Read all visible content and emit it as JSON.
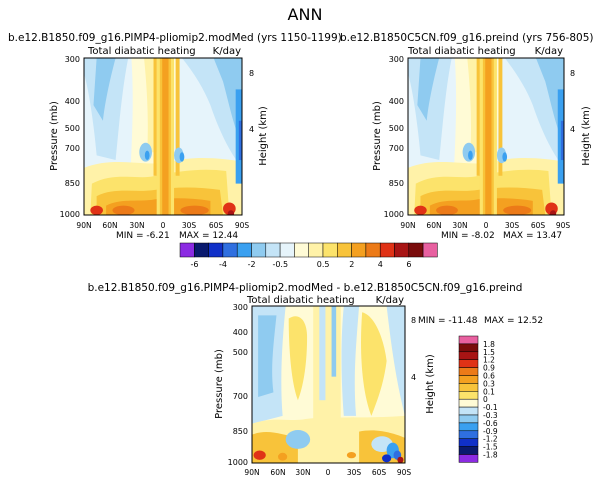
{
  "page_title": "ANN",
  "colors": {
    "purple": "#8b2be2",
    "navy": "#0a1a6e",
    "darkblue": "#1030c8",
    "blue": "#2f6fe0",
    "midblue": "#3aa0f0",
    "lightblue": "#8fcbf0",
    "paleblue": "#c4e4f7",
    "palest": "#e6f4fb",
    "cream": "#fffbd6",
    "paleyellow": "#fff2a8",
    "yellow": "#fce36b",
    "gold": "#f8c33a",
    "orange": "#f4a020",
    "darkorange": "#ec7a18",
    "red": "#e03216",
    "darkred": "#a81414",
    "maroon": "#7a0c0c",
    "pink": "#e860a0"
  },
  "chart_data": [
    {
      "type": "heatmap",
      "name": "model-panel",
      "title": "b.e12.B1850.f09_g16.PIMP4-pliomip2.modMed (yrs 1150-1199)",
      "subtitle_left": "Total diabatic heating",
      "subtitle_right": "K/day",
      "xlabel": "",
      "ylabel": "Pressure (mb)",
      "right_label": "Height (km)",
      "x_ticks": [
        "90N",
        "60N",
        "30N",
        "0",
        "30S",
        "60S",
        "90S"
      ],
      "y_ticks": [
        "300",
        "400",
        "500",
        "700",
        "850",
        "1000"
      ],
      "right_ticks": [
        "8",
        "4"
      ],
      "min_label": "MIN = -6.21",
      "max_label": "MAX = 12.44",
      "min": -6.21,
      "max": 12.44
    },
    {
      "type": "heatmap",
      "name": "preind-panel",
      "title": "b.e12.B1850C5CN.f09_g16.preind (yrs 756-805)",
      "subtitle_left": "Total diabatic heating",
      "subtitle_right": "K/day",
      "xlabel": "",
      "ylabel": "Pressure (mb)",
      "right_label": "Height (km)",
      "x_ticks": [
        "90N",
        "60N",
        "30N",
        "0",
        "30S",
        "60S",
        "90S"
      ],
      "y_ticks": [
        "300",
        "400",
        "500",
        "700",
        "850",
        "1000"
      ],
      "right_ticks": [
        "8",
        "4"
      ],
      "min_label": "MIN = -8.02",
      "max_label": "MAX = 13.47",
      "min": -8.02,
      "max": 13.47
    },
    {
      "type": "heatmap",
      "name": "diff-panel",
      "title": "b.e12.B1850.f09_g16.PIMP4-pliomip2.modMed - b.e12.B1850C5CN.f09_g16.preind",
      "subtitle_left": "Total diabatic heating",
      "subtitle_right": "K/day",
      "xlabel": "",
      "ylabel": "Pressure (mb)",
      "right_label": "Height (km)",
      "x_ticks": [
        "90N",
        "60N",
        "30N",
        "0",
        "30S",
        "60S",
        "90S"
      ],
      "y_ticks": [
        "300",
        "400",
        "500",
        "700",
        "850",
        "1000"
      ],
      "right_ticks": [
        "8",
        "4"
      ],
      "min_label": "MIN = -11.48",
      "max_label": "MAX = 12.52",
      "min": -11.48,
      "max": 12.52
    }
  ],
  "colorbars": {
    "horizontal": {
      "labels": [
        "-6",
        "-4",
        "-2",
        "-0.5",
        "0.5",
        "2",
        "4",
        "6"
      ],
      "colors": [
        "#8b2be2",
        "#0a1a6e",
        "#1030c8",
        "#2f6fe0",
        "#3aa0f0",
        "#8fcbf0",
        "#c4e4f7",
        "#e6f4fb",
        "#fffbd6",
        "#fff2a8",
        "#fce36b",
        "#f8c33a",
        "#f4a020",
        "#ec7a18",
        "#e03216",
        "#a81414",
        "#7a0c0c",
        "#e860a0"
      ]
    },
    "vertical": {
      "labels": [
        "1.8",
        "1.5",
        "1.2",
        "0.9",
        "0.6",
        "0.3",
        "0.1",
        "0",
        "-0.1",
        "-0.3",
        "-0.6",
        "-0.9",
        "-1.2",
        "-1.5",
        "-1.8"
      ],
      "colors": [
        "#e860a0",
        "#7a0c0c",
        "#a81414",
        "#e03216",
        "#ec7a18",
        "#f4a020",
        "#f8c33a",
        "#fce36b",
        "#fffbd6",
        "#c4e4f7",
        "#8fcbf0",
        "#3aa0f0",
        "#2f6fe0",
        "#1030c8",
        "#0a1a6e",
        "#8b2be2"
      ]
    }
  }
}
